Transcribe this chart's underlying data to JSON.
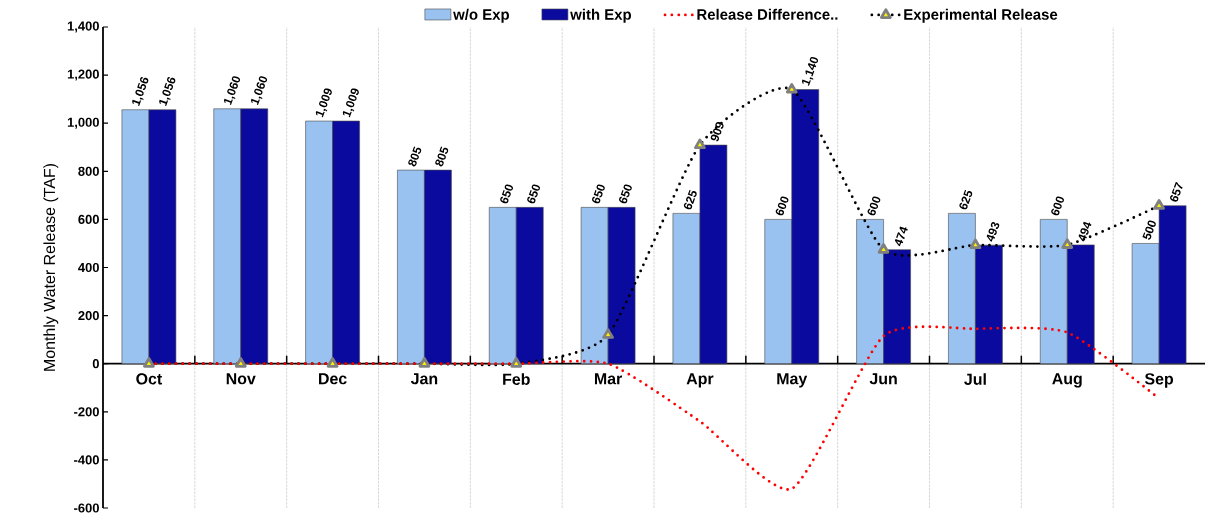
{
  "chart_data": {
    "type": "bar",
    "ylabel": "Monthly Water Release (TAF)",
    "categories": [
      "Oct",
      "Nov",
      "Dec",
      "Jan",
      "Feb",
      "Mar",
      "Apr",
      "May",
      "Jun",
      "Jul",
      "Aug",
      "Sep"
    ],
    "series": [
      {
        "name": "w/o Exp",
        "color": "#99c2f0",
        "values": [
          1056,
          1060,
          1009,
          805,
          650,
          650,
          625,
          600,
          600,
          625,
          600,
          500
        ],
        "value_labels": [
          "1,056",
          "1,060",
          "1,009",
          "805",
          "650",
          "650",
          "625",
          "600",
          "600",
          "625",
          "600",
          "500"
        ]
      },
      {
        "name": "with Exp",
        "color": "#0a0a9e",
        "values": [
          1056,
          1060,
          1009,
          805,
          650,
          650,
          909,
          1140,
          474,
          493,
          494,
          657
        ],
        "value_labels": [
          "1,056",
          "1,060",
          "1,009",
          "805",
          "650",
          "650",
          "909",
          "1,140",
          "474",
          "493",
          "494",
          "657"
        ]
      },
      {
        "name": "Release Difference..",
        "type": "line",
        "color": "#ff0000",
        "line_style": "dotted",
        "marker": "none",
        "values": [
          0,
          0,
          0,
          0,
          0,
          0,
          -240,
          -520,
          115,
          145,
          130,
          -145
        ]
      },
      {
        "name": "Experimental Release",
        "type": "line",
        "color": "#000000",
        "line_style": "dotted",
        "marker": "triangle",
        "values": [
          0,
          0,
          0,
          0,
          0,
          120,
          909,
          1140,
          474,
          493,
          494,
          657
        ]
      }
    ],
    "ylim": [
      -600,
      1400
    ],
    "yticks": [
      {
        "value": -600,
        "label": "-600"
      },
      {
        "value": -400,
        "label": "-400"
      },
      {
        "value": -200,
        "label": "-200"
      },
      {
        "value": 0,
        "label": "0"
      },
      {
        "value": 200,
        "label": "200"
      },
      {
        "value": 400,
        "label": "400"
      },
      {
        "value": 600,
        "label": "600"
      },
      {
        "value": 800,
        "label": "800"
      },
      {
        "value": 1000,
        "label": "1,000"
      },
      {
        "value": 1200,
        "label": "1,200"
      },
      {
        "value": 1400,
        "label": "1,400"
      }
    ],
    "grid": "x",
    "legend": "top"
  }
}
